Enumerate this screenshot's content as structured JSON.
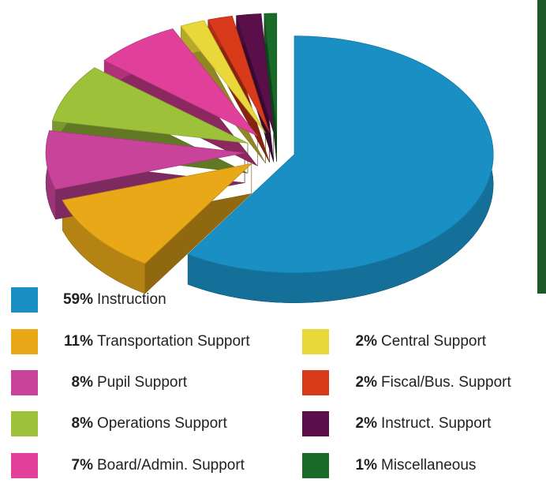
{
  "chart_data": {
    "type": "pie",
    "categories": [
      "Instruction",
      "Transportation Support",
      "Pupil Support",
      "Operations Support",
      "Board/Admin. Support",
      "Central Support",
      "Fiscal/Bus. Support",
      "Instruct. Support",
      "Miscellaneous"
    ],
    "values": [
      59,
      11,
      8,
      8,
      7,
      2,
      2,
      2,
      1
    ],
    "value_labels": [
      "59%",
      "11%",
      "8%",
      "8%",
      "7%",
      "2%",
      "2%",
      "2%",
      "1%"
    ],
    "colors": [
      "#1a8fc4",
      "#e8a818",
      "#c8449a",
      "#9dc23a",
      "#e0409a",
      "#e8d83a",
      "#d83a1a",
      "#5a0f4a",
      "#1a6a2a"
    ]
  }
}
